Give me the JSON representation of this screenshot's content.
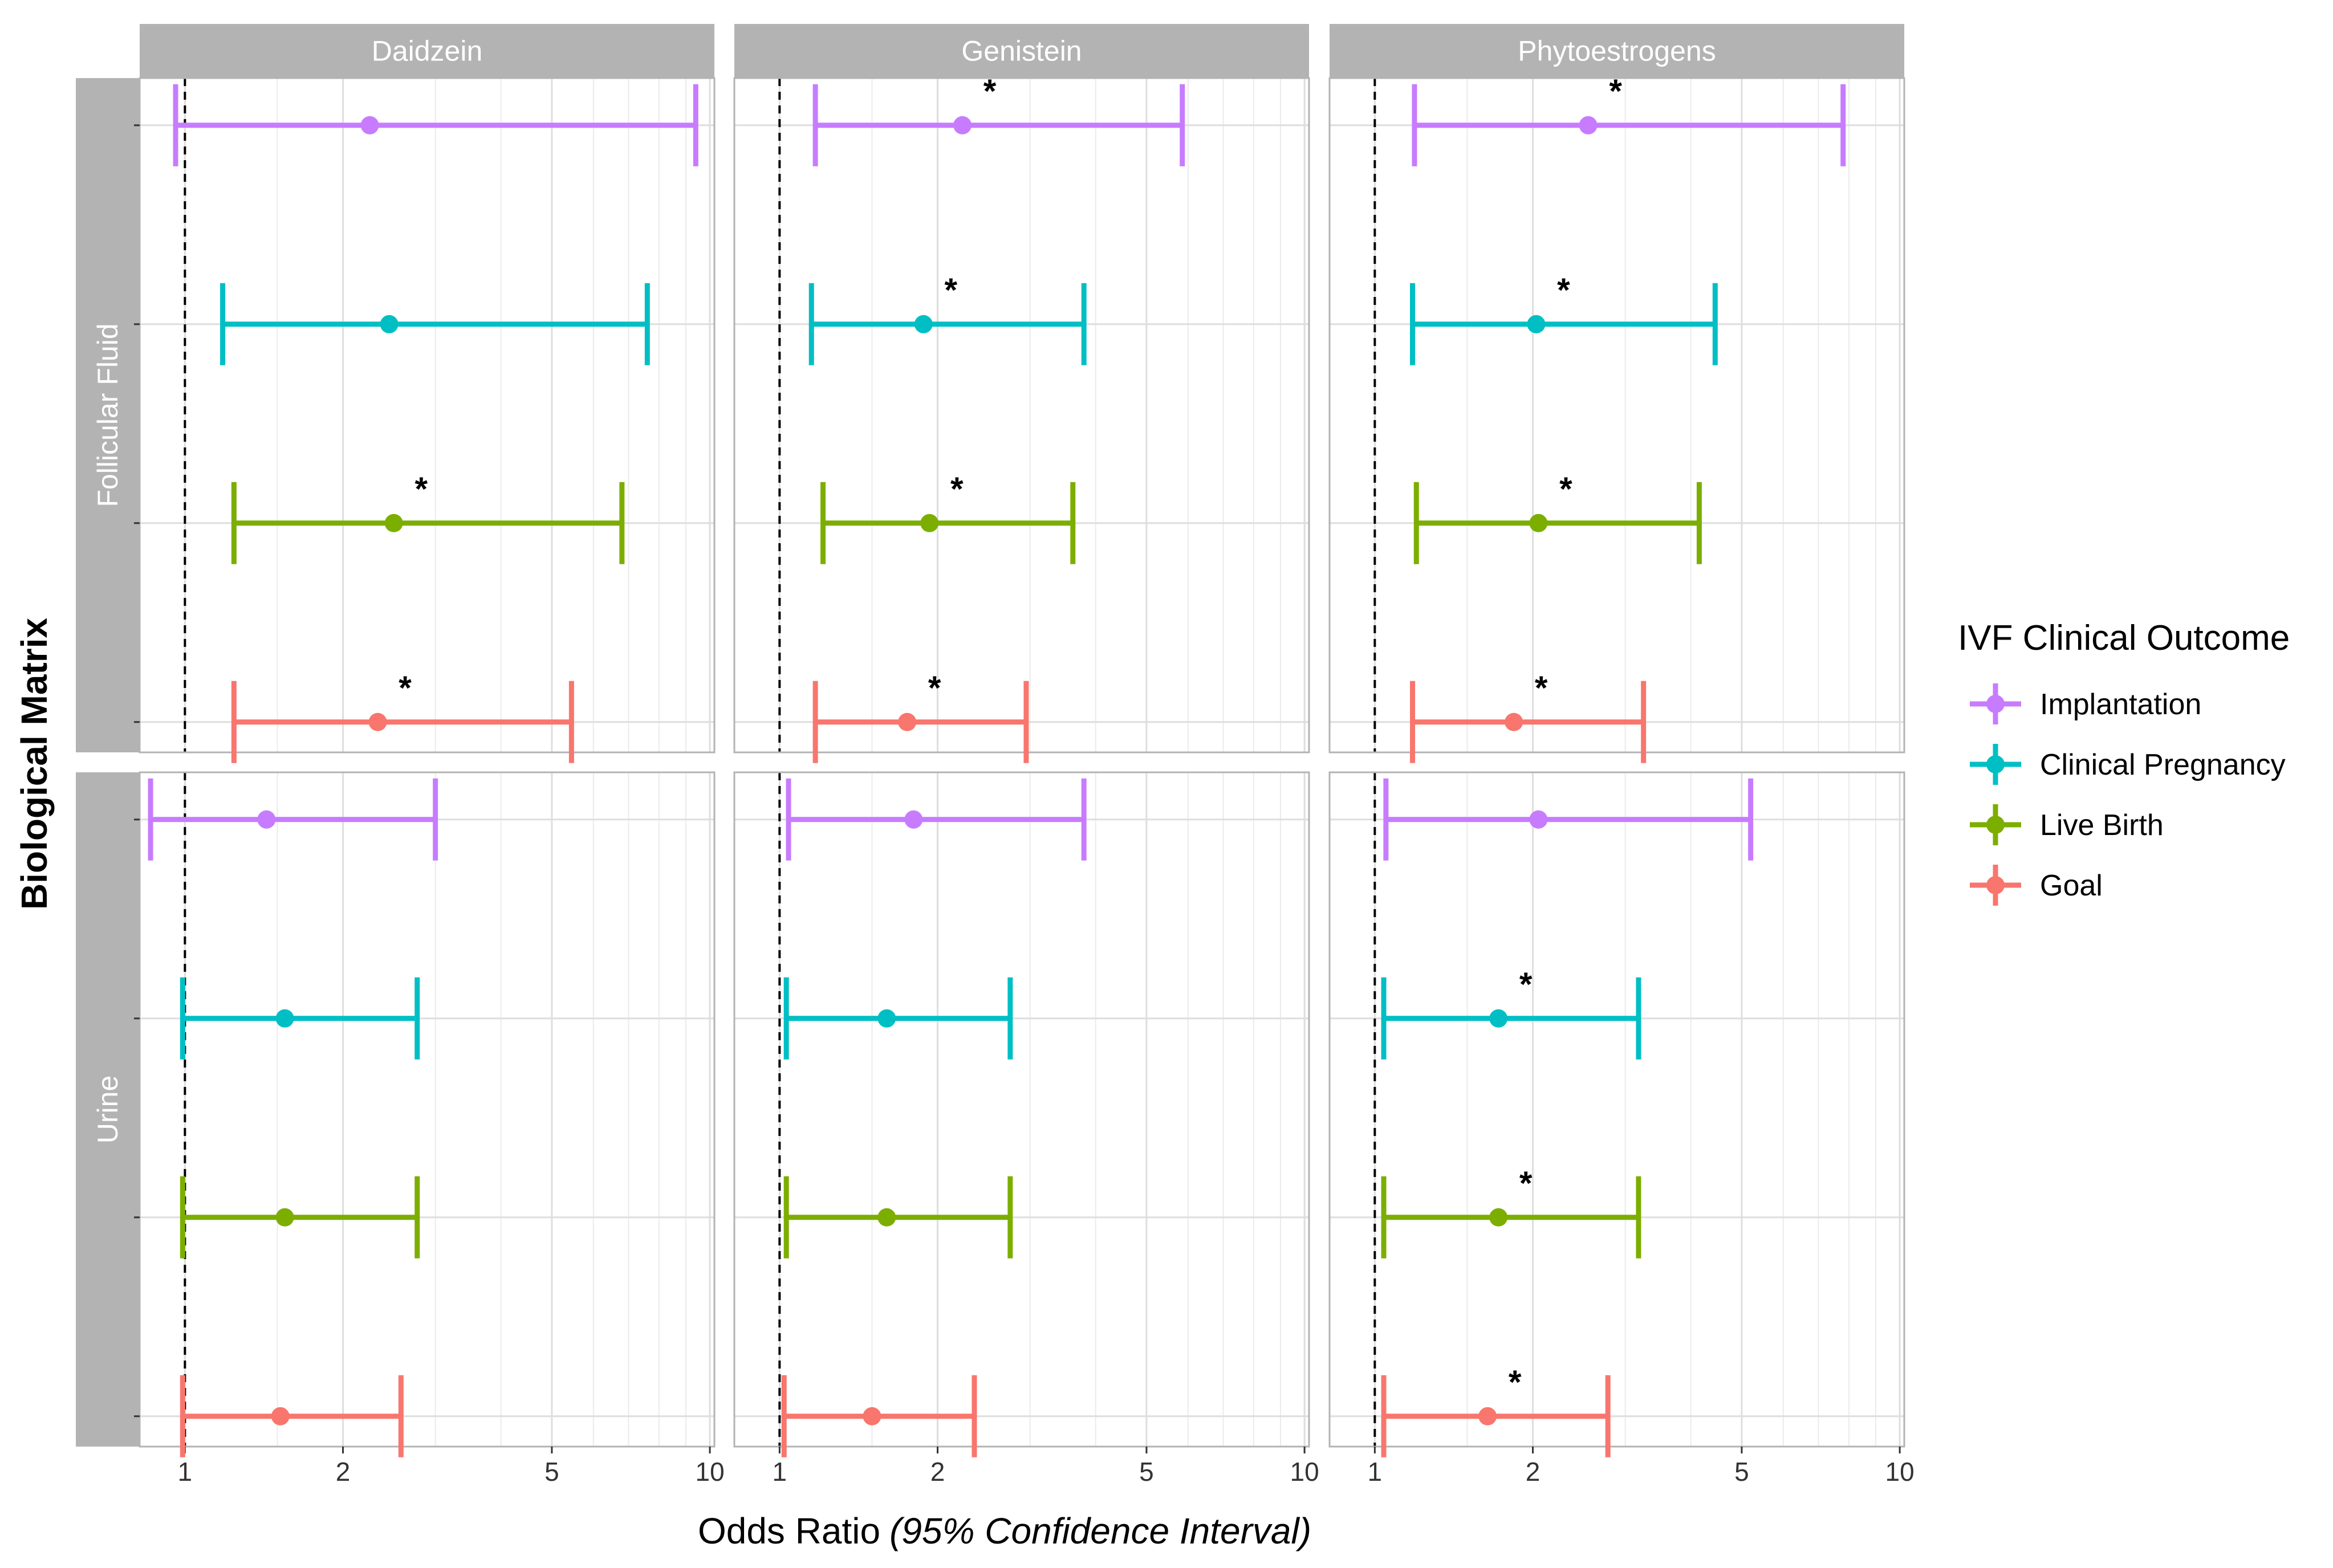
{
  "chart_data": {
    "type": "forest",
    "xlabel": "Odds Ratio",
    "xlabel_suffix": "(95% Confidence Interval)",
    "ylabel": "Biological Matrix",
    "x_scale": "log",
    "xlim": [
      0.82,
      10.2
    ],
    "x_ticks": [
      1,
      2,
      5,
      10
    ],
    "x_tick_labels": [
      "1",
      "2",
      "5",
      "10"
    ],
    "reference_line": 1,
    "columns": [
      "Daidzein",
      "Genistein",
      "Phytoestrogens"
    ],
    "rows": [
      "Follicular Fluid",
      "Urine"
    ],
    "legend": {
      "title": "IVF Clinical Outcome",
      "items": [
        {
          "name": "Implantation",
          "color": "#C77CFF"
        },
        {
          "name": "Clinical Pregnancy",
          "color": "#00BFC4"
        },
        {
          "name": "Live Birth",
          "color": "#7CAE00"
        },
        {
          "name": "Goal",
          "color": "#F8766D"
        }
      ]
    },
    "outcome_order": [
      "Implantation",
      "Clinical Pregnancy",
      "Live Birth",
      "Goal"
    ],
    "panels": [
      {
        "row": "Follicular Fluid",
        "col": "Daidzein",
        "points": [
          {
            "outcome": "Implantation",
            "or": 2.25,
            "lo": 0.96,
            "hi": 9.4,
            "sig": false
          },
          {
            "outcome": "Clinical Pregnancy",
            "or": 2.45,
            "lo": 1.18,
            "hi": 7.6,
            "sig": false
          },
          {
            "outcome": "Live Birth",
            "or": 2.5,
            "lo": 1.24,
            "hi": 6.8,
            "sig": true
          },
          {
            "outcome": "Goal",
            "or": 2.33,
            "lo": 1.24,
            "hi": 5.45,
            "sig": true
          }
        ]
      },
      {
        "row": "Follicular Fluid",
        "col": "Genistein",
        "points": [
          {
            "outcome": "Implantation",
            "or": 2.23,
            "lo": 1.17,
            "hi": 5.85,
            "sig": true
          },
          {
            "outcome": "Clinical Pregnancy",
            "or": 1.88,
            "lo": 1.15,
            "hi": 3.8,
            "sig": true
          },
          {
            "outcome": "Live Birth",
            "or": 1.93,
            "lo": 1.21,
            "hi": 3.62,
            "sig": true
          },
          {
            "outcome": "Goal",
            "or": 1.75,
            "lo": 1.17,
            "hi": 2.95,
            "sig": true
          }
        ]
      },
      {
        "row": "Follicular Fluid",
        "col": "Phytoestrogens",
        "points": [
          {
            "outcome": "Implantation",
            "or": 2.55,
            "lo": 1.19,
            "hi": 7.8,
            "sig": true
          },
          {
            "outcome": "Clinical Pregnancy",
            "or": 2.03,
            "lo": 1.18,
            "hi": 4.45,
            "sig": true
          },
          {
            "outcome": "Live Birth",
            "or": 2.05,
            "lo": 1.2,
            "hi": 4.15,
            "sig": true
          },
          {
            "outcome": "Goal",
            "or": 1.84,
            "lo": 1.18,
            "hi": 3.25,
            "sig": true
          }
        ]
      },
      {
        "row": "Urine",
        "col": "Daidzein",
        "points": [
          {
            "outcome": "Implantation",
            "or": 1.43,
            "lo": 0.86,
            "hi": 3.0,
            "sig": false
          },
          {
            "outcome": "Clinical Pregnancy",
            "or": 1.55,
            "lo": 0.99,
            "hi": 2.77,
            "sig": false
          },
          {
            "outcome": "Live Birth",
            "or": 1.55,
            "lo": 0.99,
            "hi": 2.77,
            "sig": false
          },
          {
            "outcome": "Goal",
            "or": 1.52,
            "lo": 0.99,
            "hi": 2.58,
            "sig": false
          }
        ]
      },
      {
        "row": "Urine",
        "col": "Genistein",
        "points": [
          {
            "outcome": "Implantation",
            "or": 1.8,
            "lo": 1.04,
            "hi": 3.8,
            "sig": false
          },
          {
            "outcome": "Clinical Pregnancy",
            "or": 1.6,
            "lo": 1.03,
            "hi": 2.75,
            "sig": false
          },
          {
            "outcome": "Live Birth",
            "or": 1.6,
            "lo": 1.03,
            "hi": 2.75,
            "sig": false
          },
          {
            "outcome": "Goal",
            "or": 1.5,
            "lo": 1.02,
            "hi": 2.35,
            "sig": false
          }
        ]
      },
      {
        "row": "Urine",
        "col": "Phytoestrogens",
        "points": [
          {
            "outcome": "Implantation",
            "or": 2.05,
            "lo": 1.05,
            "hi": 5.2,
            "sig": false
          },
          {
            "outcome": "Clinical Pregnancy",
            "or": 1.72,
            "lo": 1.04,
            "hi": 3.18,
            "sig": true
          },
          {
            "outcome": "Live Birth",
            "or": 1.72,
            "lo": 1.04,
            "hi": 3.18,
            "sig": true
          },
          {
            "outcome": "Goal",
            "or": 1.64,
            "lo": 1.04,
            "hi": 2.78,
            "sig": true
          }
        ]
      }
    ],
    "significance_marker": "*"
  }
}
